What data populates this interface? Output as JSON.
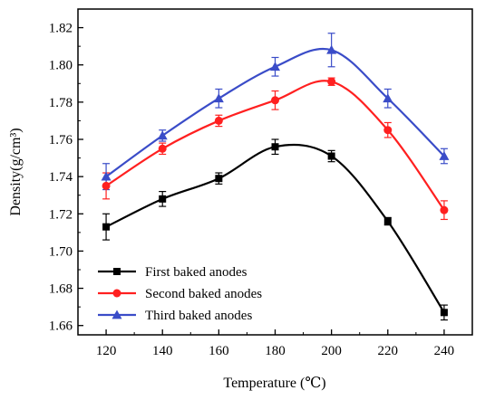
{
  "chart_data": {
    "type": "line",
    "xlabel": "Temperature (℃)",
    "ylabel": "Density(g/cm³)",
    "xlim": [
      110,
      250
    ],
    "ylim": [
      1.655,
      1.83
    ],
    "xticks": [
      120,
      140,
      160,
      180,
      200,
      220,
      240
    ],
    "yticks": [
      1.66,
      1.68,
      1.7,
      1.72,
      1.74,
      1.76,
      1.78,
      1.8,
      1.82
    ],
    "x": [
      120,
      140,
      160,
      180,
      200,
      220,
      240
    ],
    "grid": false,
    "legend_position": "bottom-left",
    "error_bars": true,
    "smoothed_fit_lines": true,
    "series": [
      {
        "name": "First baked anodes",
        "color": "#000000",
        "marker": "square",
        "values": [
          1.713,
          1.728,
          1.739,
          1.756,
          1.751,
          1.716,
          1.667
        ],
        "errors": [
          0.007,
          0.004,
          0.003,
          0.004,
          0.003,
          0.002,
          0.004
        ]
      },
      {
        "name": "Second baked anodes",
        "color": "#ff2020",
        "marker": "circle",
        "values": [
          1.735,
          1.755,
          1.77,
          1.781,
          1.791,
          1.765,
          1.722
        ],
        "errors": [
          0.007,
          0.003,
          0.003,
          0.005,
          0.002,
          0.004,
          0.005
        ]
      },
      {
        "name": "Third baked anodes",
        "color": "#3a4cc8",
        "marker": "triangle",
        "values": [
          1.74,
          1.762,
          1.782,
          1.799,
          1.808,
          1.782,
          1.751
        ],
        "errors": [
          0.007,
          0.003,
          0.005,
          0.005,
          0.009,
          0.005,
          0.004
        ]
      }
    ]
  }
}
